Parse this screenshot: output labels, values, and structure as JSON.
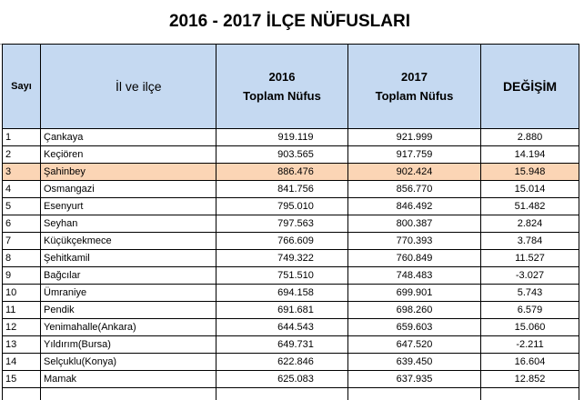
{
  "title": "2016 - 2017 İLÇE NÜFUSLARI",
  "headers": {
    "sayi": "Sayı",
    "ilce": "İl ve ilçe",
    "y2016_line1": "2016",
    "y2016_line2": "Toplam Nüfus",
    "y2017_line1": "2017",
    "y2017_line2": "Toplam Nüfus",
    "degisim": "DEĞİŞİM"
  },
  "colors": {
    "header_bg": "#c5d9f1",
    "highlight_row": "#fbd5b5"
  },
  "rows": [
    {
      "n": "1",
      "name": "Çankaya",
      "p2016": "919.119",
      "p2017": "921.999",
      "change": "2.880"
    },
    {
      "n": "2",
      "name": "Keçiören",
      "p2016": "903.565",
      "p2017": "917.759",
      "change": "14.194"
    },
    {
      "n": "3",
      "name": "Şahinbey",
      "p2016": "886.476",
      "p2017": "902.424",
      "change": "15.948"
    },
    {
      "n": "4",
      "name": "Osmangazi",
      "p2016": "841.756",
      "p2017": "856.770",
      "change": "15.014"
    },
    {
      "n": "5",
      "name": "Esenyurt",
      "p2016": "795.010",
      "p2017": "846.492",
      "change": "51.482"
    },
    {
      "n": "6",
      "name": "Seyhan",
      "p2016": "797.563",
      "p2017": "800.387",
      "change": "2.824"
    },
    {
      "n": "7",
      "name": "Küçükçekmece",
      "p2016": "766.609",
      "p2017": "770.393",
      "change": "3.784"
    },
    {
      "n": "8",
      "name": "Şehitkamil",
      "p2016": "749.322",
      "p2017": "760.849",
      "change": "11.527"
    },
    {
      "n": "9",
      "name": "Bağcılar",
      "p2016": "751.510",
      "p2017": "748.483",
      "change": "-3.027"
    },
    {
      "n": "10",
      "name": "Ümraniye",
      "p2016": "694.158",
      "p2017": "699.901",
      "change": "5.743"
    },
    {
      "n": "11",
      "name": "Pendik",
      "p2016": "691.681",
      "p2017": "698.260",
      "change": "6.579"
    },
    {
      "n": "12",
      "name": "Yenimahalle(Ankara)",
      "p2016": "644.543",
      "p2017": "659.603",
      "change": "15.060"
    },
    {
      "n": "13",
      "name": "Yıldırım(Bursa)",
      "p2016": "649.731",
      "p2017": "647.520",
      "change": "-2.211"
    },
    {
      "n": "14",
      "name": "Selçuklu(Konya)",
      "p2016": "622.846",
      "p2017": "639.450",
      "change": "16.604"
    },
    {
      "n": "15",
      "name": "Mamak",
      "p2016": "625.083",
      "p2017": "637.935",
      "change": "12.852"
    }
  ]
}
